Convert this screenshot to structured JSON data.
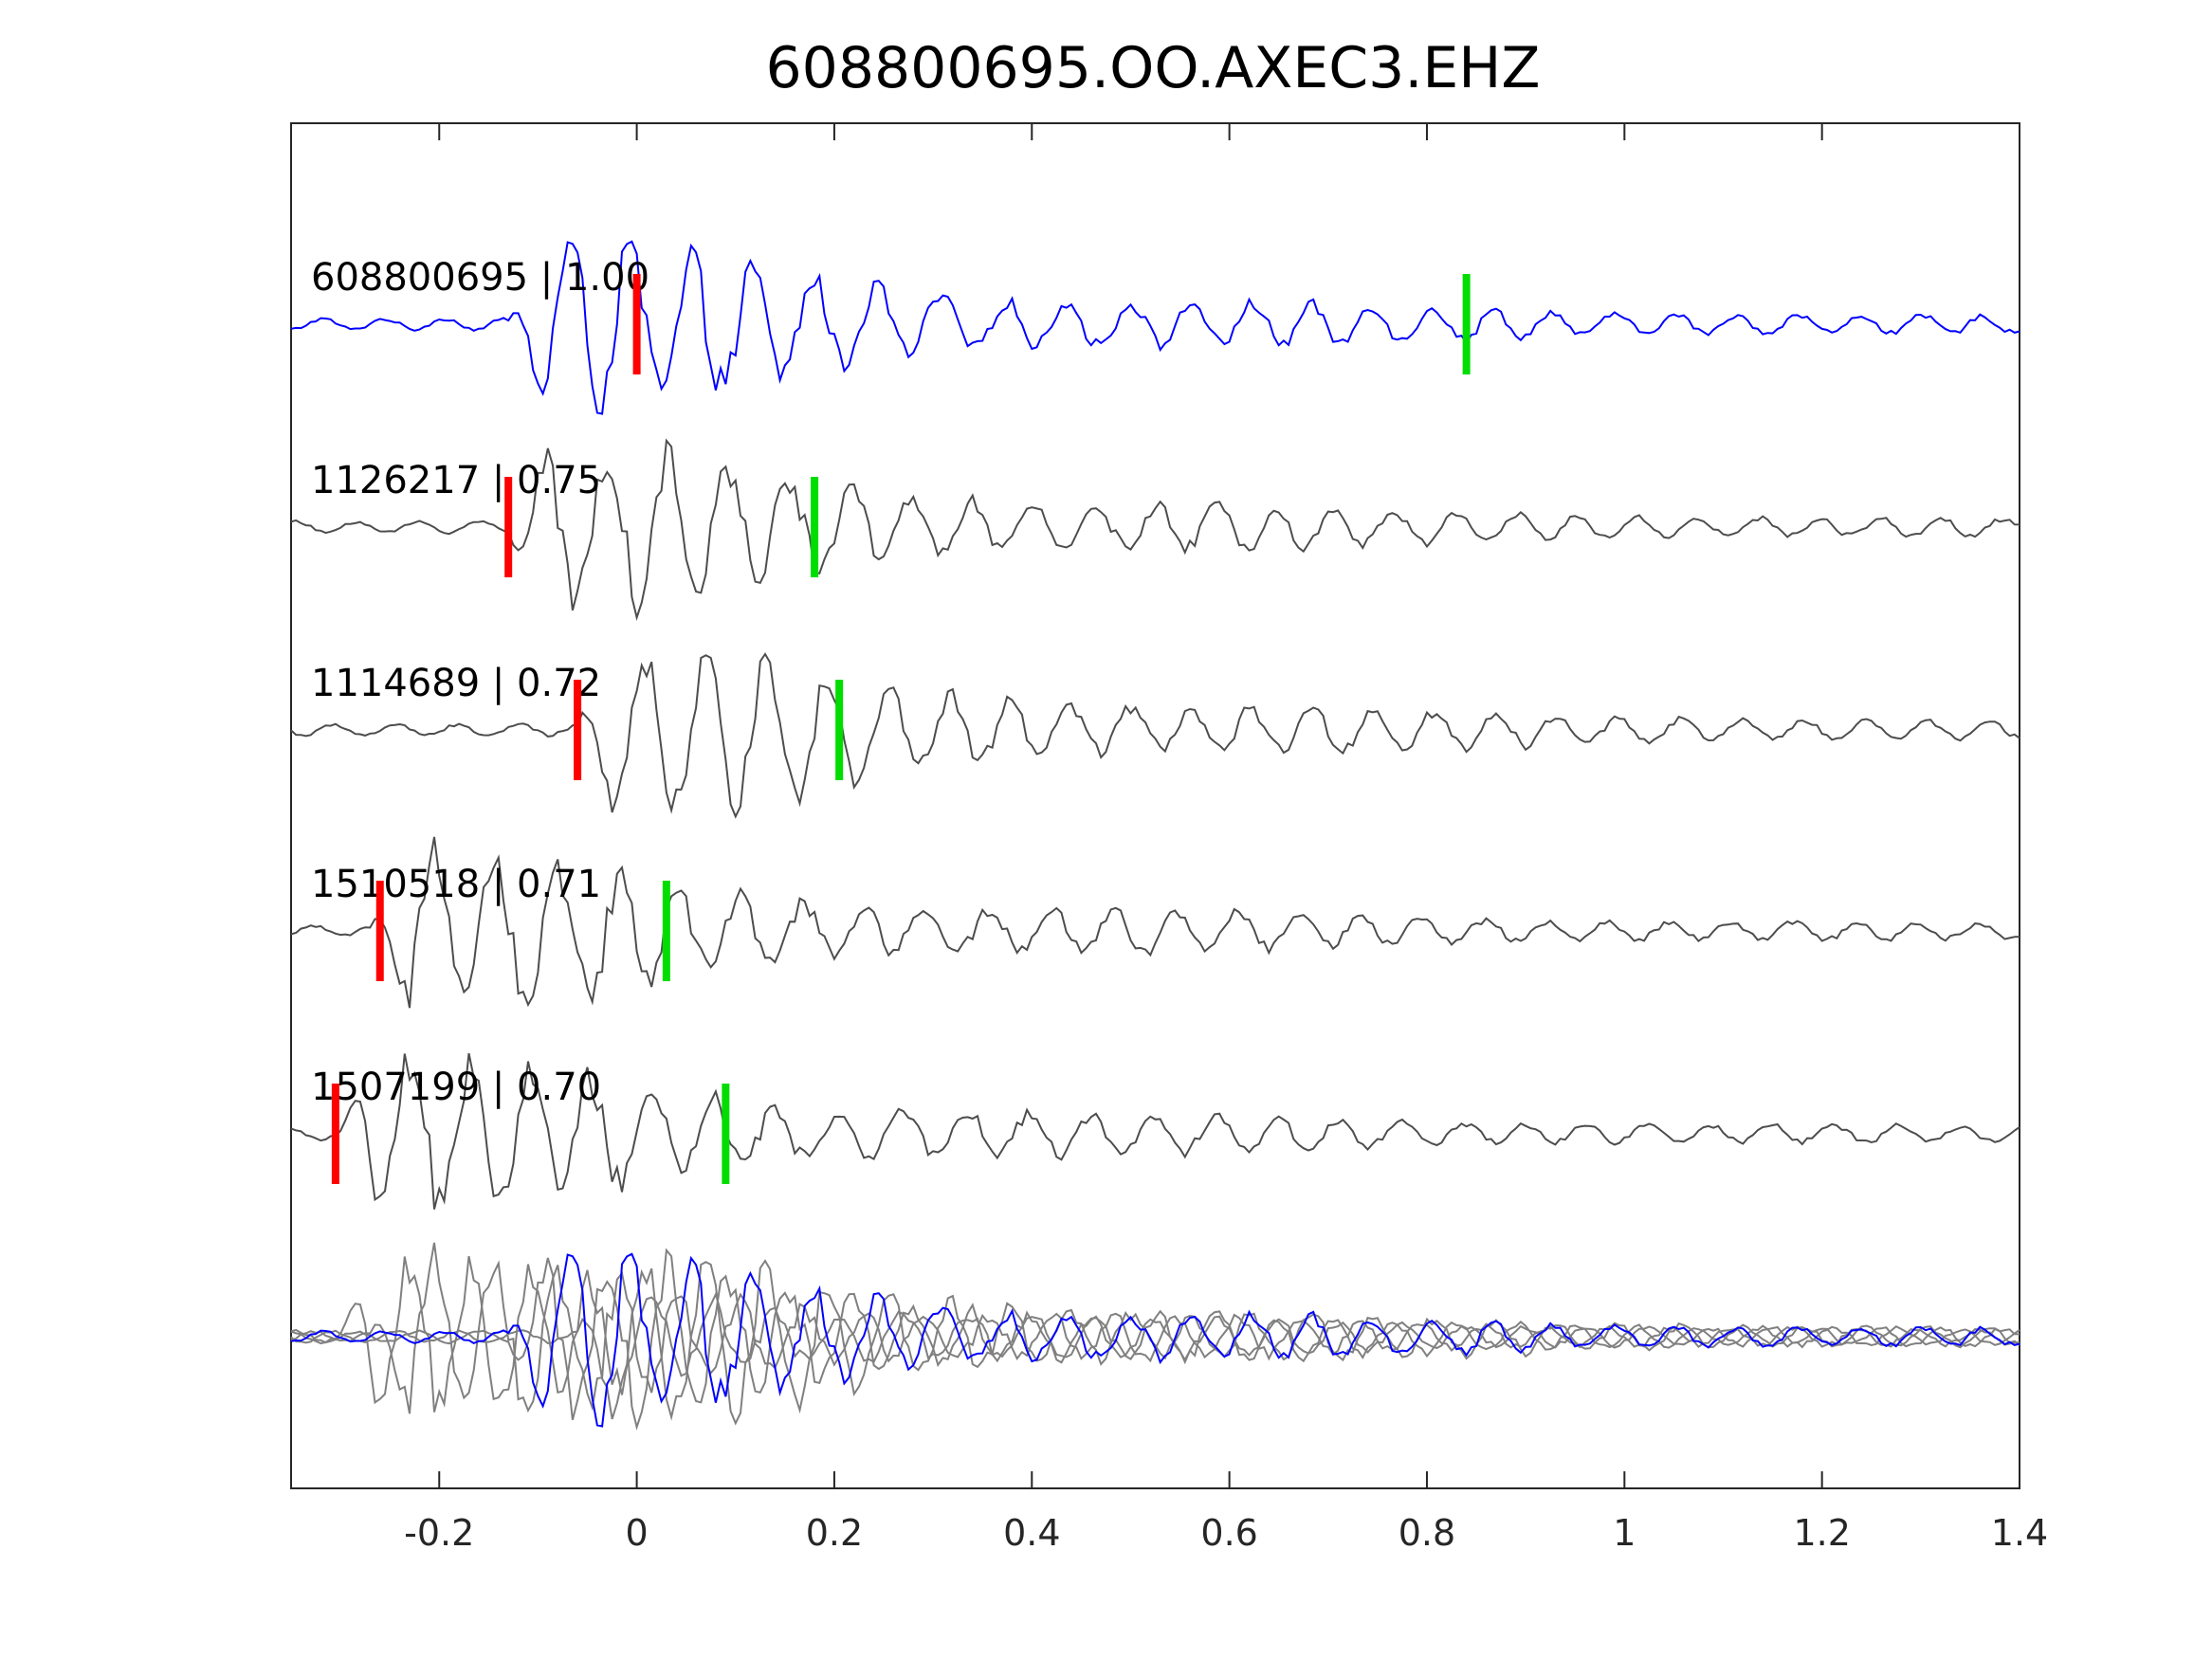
{
  "chart_data": {
    "type": "line",
    "title": "608800695.OO.AXEC3.EHZ",
    "xlabel": "",
    "ylabel": "",
    "xlim": [
      -0.35,
      1.4
    ],
    "xticks": [
      -0.2,
      0,
      0.2,
      0.4,
      0.6,
      0.8,
      1,
      1.2,
      1.4
    ],
    "xtick_labels": [
      "-0.2",
      "0",
      "0.2",
      "0.4",
      "0.6",
      "0.8",
      "1",
      "1.2",
      "1.4"
    ],
    "grid": false,
    "colors": {
      "template": "#0000ff",
      "neighbor": "#4d4d4d",
      "stack": "#808080",
      "p_pick": "#ff0000",
      "s_pick": "#00dd00"
    },
    "traces": [
      {
        "id": "608800695",
        "cc": "1.00",
        "label": "608800695 | 1.00",
        "onset": -0.13,
        "p_pick": 0.0,
        "s_pick": 0.84,
        "color": "#0000ff"
      },
      {
        "id": "1126217",
        "cc": "0.75",
        "label": "1126217 | 0.75",
        "onset": -0.13,
        "p_pick": -0.13,
        "s_pick": 0.18,
        "color": "#4d4d4d"
      },
      {
        "id": "1114689",
        "cc": "0.72",
        "label": "1114689 | 0.72",
        "onset": -0.06,
        "p_pick": -0.06,
        "s_pick": 0.205,
        "color": "#4d4d4d"
      },
      {
        "id": "1510518",
        "cc": "0.71",
        "label": "1510518 | 0.71",
        "onset": -0.27,
        "p_pick": -0.26,
        "s_pick": 0.03,
        "color": "#4d4d4d"
      },
      {
        "id": "1507199",
        "cc": "0.70",
        "label": "1507199 | 0.70",
        "onset": -0.3,
        "p_pick": -0.305,
        "s_pick": 0.09,
        "color": "#4d4d4d"
      }
    ]
  }
}
